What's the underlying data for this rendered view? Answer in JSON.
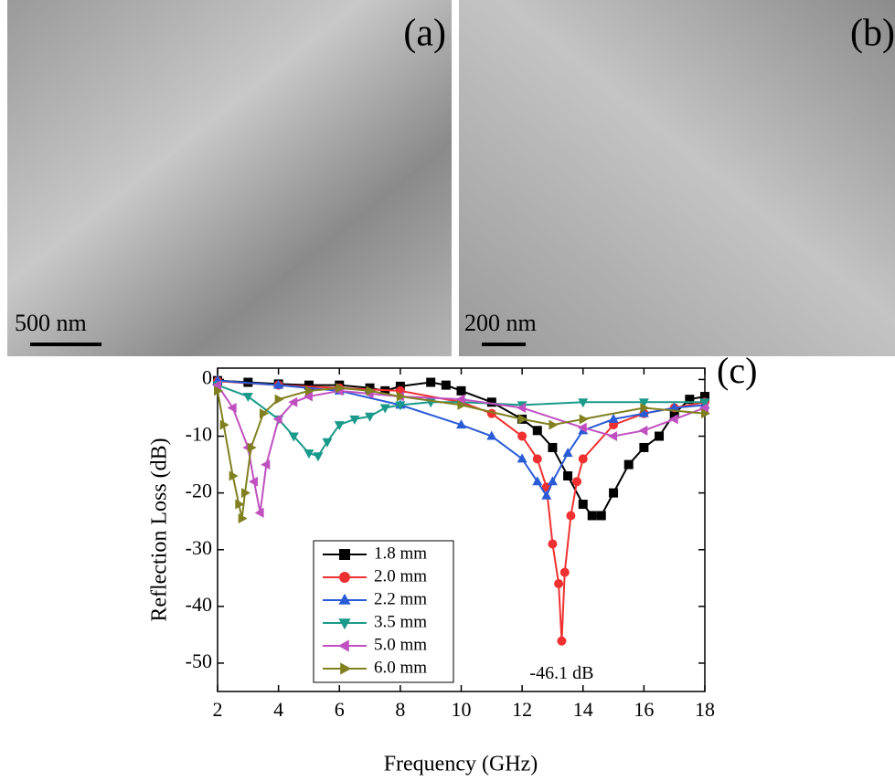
{
  "panels": [
    {
      "label": "(a)",
      "scale_bar": "500 nm"
    },
    {
      "label": "(b)",
      "scale_bar": "200 nm"
    }
  ],
  "chart_data": {
    "type": "line",
    "panel_label": "(c)",
    "x_label": "Frequency (GHz)",
    "y_label": "Reflection Loss (dB)",
    "xlim": [
      2,
      18
    ],
    "ylim": [
      -55,
      2
    ],
    "xticks": [
      2,
      4,
      6,
      8,
      10,
      12,
      14,
      16,
      18
    ],
    "yticks": [
      0,
      -10,
      -20,
      -30,
      -40,
      -50
    ],
    "legend": "lower-left",
    "annotation": {
      "text": "-46.1 dB",
      "x": 13.3,
      "y": -52
    },
    "series": [
      {
        "name": "1.8 mm",
        "color": "#000000",
        "marker": "square",
        "x": [
          2,
          3,
          4,
          5,
          6,
          7,
          7.5,
          8,
          9,
          9.5,
          10,
          11,
          12,
          12.5,
          13,
          13.5,
          14,
          14.3,
          14.6,
          15,
          15.5,
          16,
          16.5,
          17,
          17.5,
          18
        ],
        "values": [
          -0.2,
          -0.5,
          -0.8,
          -1,
          -1,
          -1.5,
          -2,
          -1.2,
          -0.5,
          -1,
          -2,
          -4,
          -7,
          -9,
          -12,
          -17,
          -22,
          -24,
          -24,
          -20,
          -15,
          -12,
          -10,
          -6,
          -3.5,
          -3
        ]
      },
      {
        "name": "2.0 mm",
        "color": "#f03030",
        "marker": "circle",
        "x": [
          2,
          4,
          6,
          8,
          10,
          11,
          12,
          12.5,
          12.8,
          13,
          13.2,
          13.3,
          13.4,
          13.6,
          13.8,
          14,
          15,
          16,
          17,
          18
        ],
        "values": [
          -0.3,
          -1,
          -1.5,
          -2,
          -4,
          -6,
          -10,
          -14,
          -19,
          -29,
          -36,
          -46.1,
          -34,
          -24,
          -18,
          -14,
          -8,
          -6,
          -5,
          -4
        ]
      },
      {
        "name": "2.2 mm",
        "color": "#2a5bd7",
        "marker": "triangle-up",
        "x": [
          2,
          4,
          6,
          8,
          10,
          11,
          12,
          12.5,
          12.8,
          13,
          13.5,
          14,
          15,
          16,
          17,
          18
        ],
        "values": [
          -0.2,
          -1,
          -2,
          -4.5,
          -8,
          -10,
          -14,
          -18,
          -20.5,
          -18,
          -13,
          -9,
          -7,
          -6,
          -5,
          -4.5
        ]
      },
      {
        "name": "3.5 mm",
        "color": "#1a9a8a",
        "marker": "triangle-down",
        "x": [
          2,
          3,
          4,
          4.5,
          5,
          5.3,
          5.6,
          6,
          6.5,
          7,
          7.5,
          8,
          9,
          10,
          12,
          14,
          16,
          18
        ],
        "values": [
          -1,
          -3,
          -7,
          -10,
          -13,
          -13.5,
          -11,
          -8,
          -7,
          -6.5,
          -5,
          -4.5,
          -4,
          -4,
          -4.5,
          -4,
          -4,
          -4
        ]
      },
      {
        "name": "5.0 mm",
        "color": "#c050c0",
        "marker": "triangle-left",
        "x": [
          2,
          2.5,
          3,
          3.2,
          3.4,
          3.6,
          4,
          4.5,
          5,
          6,
          7,
          8,
          10,
          12,
          14,
          15,
          16,
          17,
          18
        ],
        "values": [
          -1,
          -5,
          -12,
          -18,
          -23.5,
          -15,
          -7,
          -4,
          -3,
          -2,
          -2.5,
          -3,
          -3.5,
          -5,
          -8.5,
          -10,
          -9,
          -7,
          -5
        ]
      },
      {
        "name": "6.0 mm",
        "color": "#808020",
        "marker": "triangle-right",
        "x": [
          2,
          2.2,
          2.5,
          2.7,
          2.8,
          2.9,
          3.1,
          3.5,
          4,
          5,
          6,
          7,
          8,
          10,
          12,
          13,
          14,
          16,
          18
        ],
        "values": [
          -2,
          -8,
          -17,
          -22,
          -24.5,
          -20,
          -12,
          -6,
          -3.5,
          -2,
          -1.5,
          -2,
          -3,
          -4.5,
          -7,
          -8,
          -7,
          -5,
          -6
        ]
      }
    ]
  }
}
